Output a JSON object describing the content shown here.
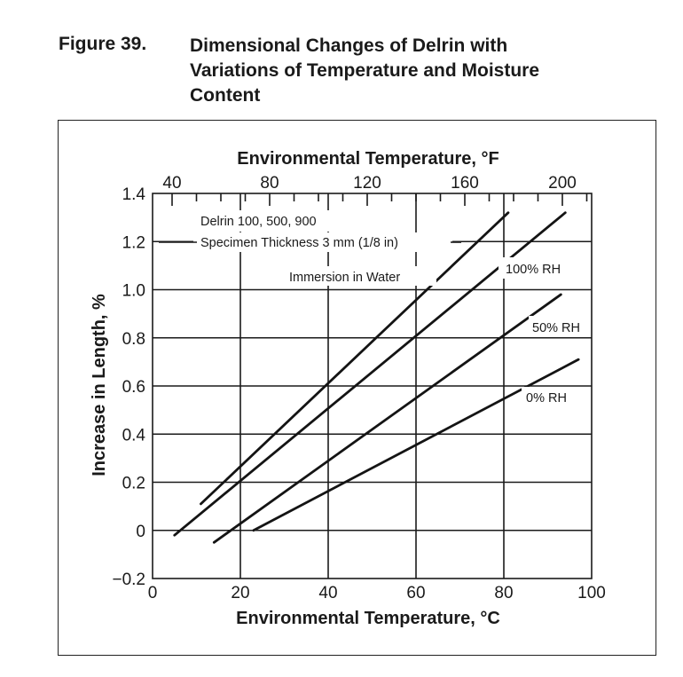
{
  "figure": {
    "label": "Figure 39.",
    "title_lines": [
      "Dimensional Changes of Delrin with",
      "Variations of Temperature and Moisture",
      "Content"
    ]
  },
  "chart_data": {
    "type": "line",
    "xlabel": "Environmental Temperature, °C",
    "x2label": "Environmental Temperature, °F",
    "ylabel": "Increase in Length, %",
    "xlim": [
      0,
      100
    ],
    "ylim": [
      -0.2,
      1.4
    ],
    "x_ticks": [
      "0",
      "20",
      "40",
      "60",
      "80",
      "100"
    ],
    "x2_ticks": [
      {
        "value": 40,
        "label": "40"
      },
      {
        "value": 80,
        "label": "80"
      },
      {
        "value": 120,
        "label": "120"
      },
      {
        "value": 160,
        "label": "160"
      },
      {
        "value": 200,
        "label": "200"
      }
    ],
    "y_ticks": [
      "1.4",
      "1.2",
      "1.0",
      "0.8",
      "0.6",
      "0.4",
      "0.2",
      "0",
      "−0.2"
    ],
    "grid": true,
    "annotations": [
      "Delrin 100, 500, 900",
      "Specimen Thickness 3 mm (1/8 in)"
    ],
    "series": [
      {
        "name": "Immersion in Water",
        "x": [
          11,
          81
        ],
        "y": [
          0.11,
          1.32
        ]
      },
      {
        "x": [
          5,
          94
        ],
        "y": [
          -0.02,
          1.32
        ]
      },
      {
        "name": "100% RH",
        "x": [
          14,
          93
        ],
        "y": [
          -0.05,
          0.98
        ]
      },
      {
        "name": "50% RH",
        "x": [
          23,
          97
        ],
        "y": [
          0.0,
          0.71
        ]
      },
      {
        "name": "0% RH"
      }
    ]
  }
}
